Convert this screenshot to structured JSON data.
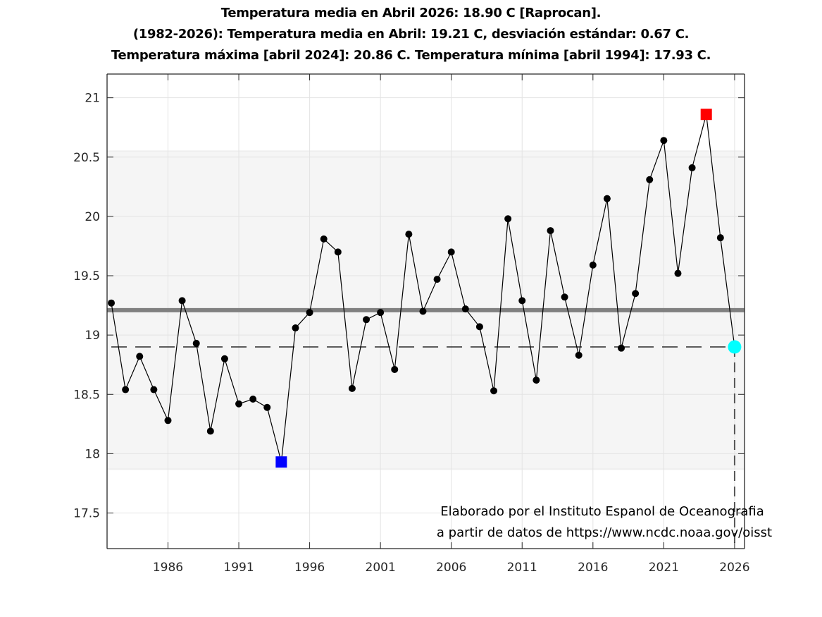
{
  "chart_data": {
    "type": "line",
    "title_lines": [
      "Temperatura media en Abril 2026: 18.90 C [Raprocan].",
      "(1982-2026): Temperatura media en Abril: 19.21 C, desviación estándar: 0.67 C.",
      "Temperatura máxima [abril 2024]: 20.86 C. Temperatura mínima [abril 1994]: 17.93 C."
    ],
    "xlabel": "",
    "ylabel": "",
    "xlim": [
      1981.7,
      2026.7
    ],
    "ylim": [
      17.2,
      21.2
    ],
    "xticks": [
      1986,
      1991,
      1996,
      2001,
      2006,
      2011,
      2016,
      2021,
      2026
    ],
    "xtick_labels": [
      "1986",
      "1991",
      "1996",
      "2001",
      "2006",
      "2011",
      "2016",
      "2021",
      "2026"
    ],
    "yticks": [
      17.5,
      18,
      18.5,
      19,
      19.5,
      20,
      20.5,
      21
    ],
    "ytick_labels": [
      "17.5",
      "18",
      "18.5",
      "19",
      "19.5",
      "20",
      "20.5",
      "21"
    ],
    "grid": true,
    "x": [
      1982,
      1983,
      1984,
      1985,
      1986,
      1987,
      1988,
      1989,
      1990,
      1991,
      1992,
      1993,
      1994,
      1995,
      1996,
      1997,
      1998,
      1999,
      2000,
      2001,
      2002,
      2003,
      2004,
      2005,
      2006,
      2007,
      2008,
      2009,
      2010,
      2011,
      2012,
      2013,
      2014,
      2015,
      2016,
      2017,
      2018,
      2019,
      2020,
      2021,
      2022,
      2023,
      2024,
      2025,
      2026
    ],
    "series": [
      {
        "name": "Temperatura media Abril",
        "color": "#000000",
        "values": [
          19.27,
          18.54,
          18.82,
          18.54,
          18.28,
          19.29,
          18.93,
          18.19,
          18.8,
          18.42,
          18.46,
          18.39,
          17.93,
          19.06,
          19.19,
          19.81,
          19.7,
          18.55,
          19.13,
          19.19,
          18.71,
          19.85,
          19.2,
          19.47,
          19.7,
          19.22,
          19.07,
          18.53,
          19.98,
          19.29,
          18.62,
          19.88,
          19.32,
          18.83,
          19.59,
          20.15,
          18.89,
          19.35,
          20.31,
          20.64,
          19.52,
          20.41,
          20.86,
          19.82,
          18.9
        ]
      }
    ],
    "mean": 19.21,
    "std": 0.67,
    "band": {
      "low": 17.87,
      "high": 20.55,
      "color": "#f5f5f5"
    },
    "mean_line_color": "#808080",
    "current": {
      "year": 2026,
      "value": 18.9,
      "color": "#00ffff"
    },
    "max": {
      "year": 2024,
      "value": 20.86,
      "color": "#ff0000"
    },
    "min": {
      "year": 1994,
      "value": 17.93,
      "color": "#0000ff"
    },
    "annotation_lines": [
      "Elaborado por el Instituto Espanol de Oceanografia",
      "a partir de datos de https://www.ncdc.noaa.gov/oisst"
    ]
  }
}
